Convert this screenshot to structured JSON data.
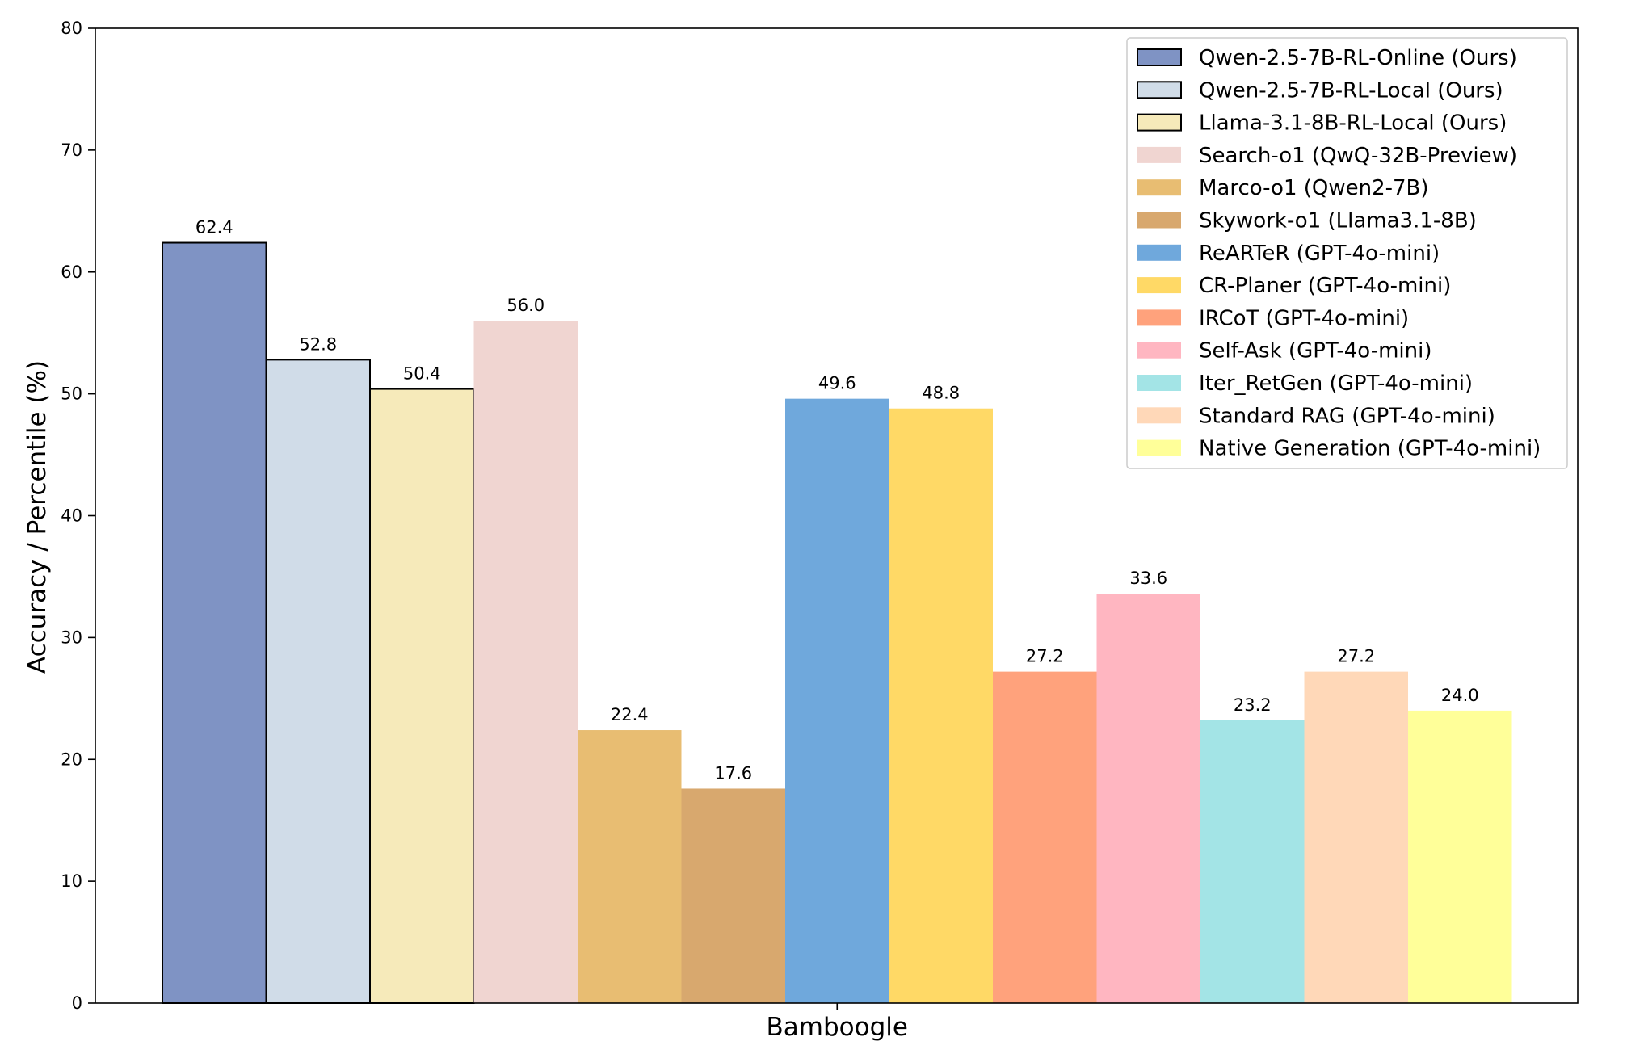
{
  "chart_data": {
    "type": "bar",
    "title": "",
    "xlabel": "",
    "ylabel": "Accuracy / Percentile (%)",
    "categories": [
      "Bamboogle"
    ],
    "ylim": [
      0,
      80
    ],
    "yticks": [
      0,
      10,
      20,
      30,
      40,
      50,
      60,
      70,
      80
    ],
    "grid": false,
    "legend_position": "top-right",
    "series": [
      {
        "name": "Qwen-2.5-7B-RL-Online (Ours)",
        "values": [
          62.4
        ],
        "label": "62.4",
        "color": "#7f93c4",
        "outlined": true
      },
      {
        "name": "Qwen-2.5-7B-RL-Local (Ours)",
        "values": [
          52.8
        ],
        "label": "52.8",
        "color": "#d0dce8",
        "outlined": true
      },
      {
        "name": "Llama-3.1-8B-RL-Local (Ours)",
        "values": [
          50.4
        ],
        "label": "50.4",
        "color": "#f6eaba",
        "outlined": true
      },
      {
        "name": "Search-o1 (QwQ-32B-Preview)",
        "values": [
          56.0
        ],
        "label": "56.0",
        "color": "#f0d5d1",
        "outlined": false
      },
      {
        "name": "Marco-o1 (Qwen2-7B)",
        "values": [
          22.4
        ],
        "label": "22.4",
        "color": "#e8bd72",
        "outlined": false
      },
      {
        "name": "Skywork-o1 (Llama3.1-8B)",
        "values": [
          17.6
        ],
        "label": "17.6",
        "color": "#d8a86e",
        "outlined": false
      },
      {
        "name": "ReARTeR (GPT-4o-mini)",
        "values": [
          49.6
        ],
        "label": "49.6",
        "color": "#6fa8dc",
        "outlined": false
      },
      {
        "name": "CR-Planer (GPT-4o-mini)",
        "values": [
          48.8
        ],
        "label": "48.8",
        "color": "#ffd966",
        "outlined": false
      },
      {
        "name": "IRCoT (GPT-4o-mini)",
        "values": [
          27.2
        ],
        "label": "27.2",
        "color": "#ffa27c",
        "outlined": false
      },
      {
        "name": "Self-Ask (GPT-4o-mini)",
        "values": [
          33.6
        ],
        "label": "33.6",
        "color": "#ffb6c1",
        "outlined": false
      },
      {
        "name": "Iter_RetGen (GPT-4o-mini)",
        "values": [
          23.2
        ],
        "label": "23.2",
        "color": "#a3e4e6",
        "outlined": false
      },
      {
        "name": "Standard RAG (GPT-4o-mini)",
        "values": [
          27.2
        ],
        "label": "27.2",
        "color": "#ffd8b8",
        "outlined": false
      },
      {
        "name": "Native Generation (GPT-4o-mini)",
        "values": [
          24.0
        ],
        "label": "24.0",
        "color": "#ffff99",
        "outlined": false
      }
    ]
  }
}
